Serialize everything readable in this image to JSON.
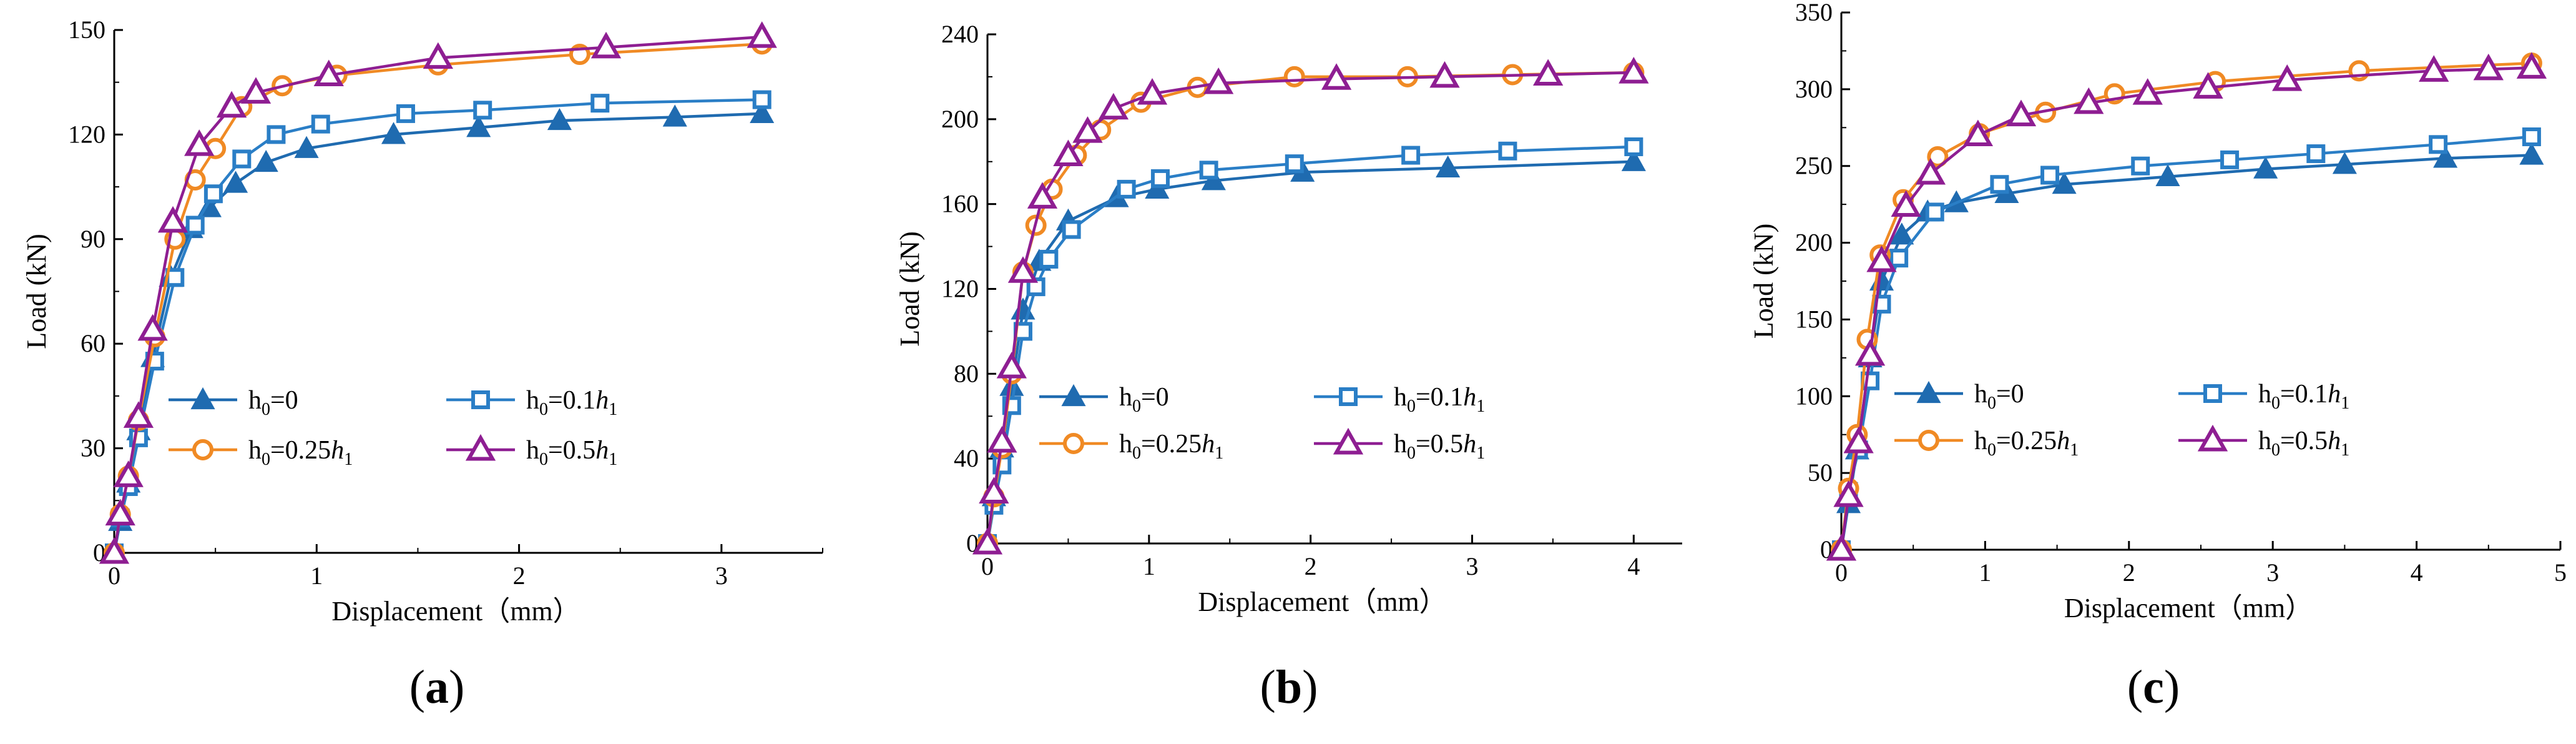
{
  "colors": {
    "h0_0": "#1f6bb0",
    "h0_01": "#2a7ec6",
    "h0_025": "#f08a24",
    "h0_05": "#8e1e92",
    "axis": "#000000"
  },
  "series_meta": [
    {
      "key": "s1",
      "marker": "triangle-filled",
      "color_key": "h0_0",
      "legend_base": "h",
      "legend_sub": "0",
      "legend_rest": "=0",
      "legend_var": "",
      "legend_var_sub": ""
    },
    {
      "key": "s2",
      "marker": "square-open",
      "color_key": "h0_01",
      "legend_base": "h",
      "legend_sub": "0",
      "legend_rest": "=0.1",
      "legend_var": "h",
      "legend_var_sub": "1"
    },
    {
      "key": "s3",
      "marker": "circle-open",
      "color_key": "h0_025",
      "legend_base": "h",
      "legend_sub": "0",
      "legend_rest": "=0.25",
      "legend_var": "h",
      "legend_var_sub": "1"
    },
    {
      "key": "s4",
      "marker": "triangle-open",
      "color_key": "h0_05",
      "legend_base": "h",
      "legend_sub": "0",
      "legend_rest": "=0.5",
      "legend_var": "h",
      "legend_var_sub": "1"
    }
  ],
  "chart_data": [
    {
      "type": "line",
      "panel_label_prefix": "(",
      "panel_label": "a",
      "panel_label_suffix": ")",
      "xlabel": "Displacement（mm）",
      "ylabel": "Load (kN)",
      "xlim": [
        0,
        3.5
      ],
      "ylim": [
        0,
        150
      ],
      "xticks": [
        0,
        1,
        2,
        3
      ],
      "yticks": [
        0,
        30,
        60,
        90,
        120,
        150
      ],
      "series": [
        {
          "name": "h0=0",
          "x": [
            0,
            0.03,
            0.07,
            0.12,
            0.19,
            0.28,
            0.38,
            0.47,
            0.6,
            0.75,
            0.95,
            1.38,
            1.8,
            2.2,
            2.77,
            3.2
          ],
          "y": [
            0,
            9,
            20,
            35,
            56,
            79,
            93,
            99,
            106,
            112,
            116,
            120,
            122,
            124,
            125,
            126
          ]
        },
        {
          "name": "h0=0.1h1",
          "x": [
            0,
            0.03,
            0.07,
            0.12,
            0.2,
            0.3,
            0.4,
            0.49,
            0.63,
            0.8,
            1.02,
            1.44,
            1.82,
            2.4,
            3.2
          ],
          "y": [
            0,
            10,
            19,
            33,
            55,
            79,
            94,
            103,
            113,
            120,
            123,
            126,
            127,
            129,
            130
          ]
        },
        {
          "name": "h0=0.25h1",
          "x": [
            0,
            0.03,
            0.07,
            0.12,
            0.2,
            0.3,
            0.4,
            0.5,
            0.63,
            0.83,
            1.1,
            1.6,
            2.3,
            3.2
          ],
          "y": [
            0,
            11,
            22,
            38,
            62,
            90,
            107,
            116,
            128,
            134,
            137,
            140,
            143,
            146
          ]
        },
        {
          "name": "h0=0.5h1",
          "x": [
            0,
            0.03,
            0.07,
            0.12,
            0.19,
            0.29,
            0.42,
            0.58,
            0.7,
            1.06,
            1.6,
            2.43,
            3.2
          ],
          "y": [
            0,
            11,
            22,
            39,
            64,
            95,
            117,
            128,
            132,
            137,
            142,
            145,
            148
          ]
        }
      ]
    },
    {
      "type": "line",
      "panel_label_prefix": "(",
      "panel_label": "b",
      "panel_label_suffix": ")",
      "xlabel": "Displacement（mm）",
      "ylabel": "Load (kN)",
      "xlim": [
        0,
        4.3
      ],
      "ylim": [
        0,
        240
      ],
      "xticks": [
        0,
        1,
        2,
        3,
        4
      ],
      "yticks": [
        0,
        40,
        80,
        120,
        160,
        200,
        240
      ],
      "series": [
        {
          "name": "h0=0",
          "x": [
            0,
            0.04,
            0.09,
            0.15,
            0.22,
            0.32,
            0.5,
            0.8,
            1.05,
            1.4,
            1.95,
            2.85,
            4.0
          ],
          "y": [
            0,
            22,
            45,
            74,
            110,
            133,
            152,
            163,
            167,
            171,
            175,
            177,
            180
          ]
        },
        {
          "name": "h0=0.1h1",
          "x": [
            0,
            0.04,
            0.09,
            0.15,
            0.22,
            0.3,
            0.38,
            0.52,
            0.86,
            1.07,
            1.37,
            1.9,
            2.62,
            3.22,
            4.0
          ],
          "y": [
            0,
            18,
            37,
            65,
            100,
            121,
            134,
            148,
            167,
            172,
            176,
            179,
            183,
            185,
            187
          ]
        },
        {
          "name": "h0=0.25h1",
          "x": [
            0,
            0.04,
            0.09,
            0.15,
            0.22,
            0.3,
            0.4,
            0.55,
            0.7,
            0.95,
            1.3,
            1.9,
            2.6,
            3.25,
            4.0
          ],
          "y": [
            0,
            22,
            45,
            80,
            128,
            150,
            167,
            183,
            195,
            208,
            215,
            220,
            220,
            221,
            222
          ]
        },
        {
          "name": "h0=0.5h1",
          "x": [
            0,
            0.04,
            0.09,
            0.15,
            0.22,
            0.34,
            0.5,
            0.62,
            0.78,
            1.02,
            1.43,
            2.16,
            2.83,
            3.47,
            4.0
          ],
          "y": [
            0,
            24,
            48,
            83,
            128,
            163,
            183,
            194,
            205,
            212,
            217,
            219,
            220,
            221,
            222
          ]
        }
      ]
    },
    {
      "type": "line",
      "panel_label_prefix": "(",
      "panel_label": "c",
      "panel_label_suffix": ")",
      "xlabel": "Displacement（mm）",
      "ylabel": "Load (kN)",
      "xlim": [
        0,
        5
      ],
      "ylim": [
        0,
        350
      ],
      "xticks": [
        0,
        1,
        2,
        3,
        4,
        5
      ],
      "yticks": [
        0,
        50,
        100,
        150,
        200,
        250,
        300,
        350
      ],
      "series": [
        {
          "name": "h0=0",
          "x": [
            0,
            0.05,
            0.11,
            0.2,
            0.28,
            0.42,
            0.6,
            0.8,
            1.15,
            1.55,
            2.27,
            2.95,
            3.5,
            4.2,
            4.8
          ],
          "y": [
            0,
            30,
            65,
            125,
            175,
            205,
            220,
            226,
            232,
            238,
            243,
            248,
            251,
            255,
            257
          ]
        },
        {
          "name": "h0=0.1h1",
          "x": [
            0,
            0.05,
            0.12,
            0.2,
            0.28,
            0.4,
            0.65,
            1.1,
            1.45,
            2.08,
            2.7,
            3.3,
            4.15,
            4.8
          ],
          "y": [
            0,
            38,
            65,
            110,
            160,
            190,
            220,
            238,
            244,
            250,
            254,
            258,
            264,
            269
          ]
        },
        {
          "name": "h0=0.25h1",
          "x": [
            0,
            0.05,
            0.11,
            0.18,
            0.27,
            0.43,
            0.67,
            0.96,
            1.42,
            1.9,
            2.6,
            3.6,
            4.8
          ],
          "y": [
            0,
            40,
            75,
            137,
            192,
            228,
            256,
            271,
            285,
            297,
            305,
            312,
            317
          ]
        },
        {
          "name": "h0=0.5h1",
          "x": [
            0,
            0.05,
            0.12,
            0.2,
            0.28,
            0.45,
            0.62,
            0.95,
            1.25,
            1.72,
            2.13,
            2.55,
            3.1,
            4.12,
            4.5,
            4.8
          ],
          "y": [
            0,
            35,
            70,
            127,
            188,
            224,
            245,
            270,
            283,
            291,
            297,
            301,
            306,
            312,
            313,
            314
          ]
        }
      ]
    }
  ]
}
